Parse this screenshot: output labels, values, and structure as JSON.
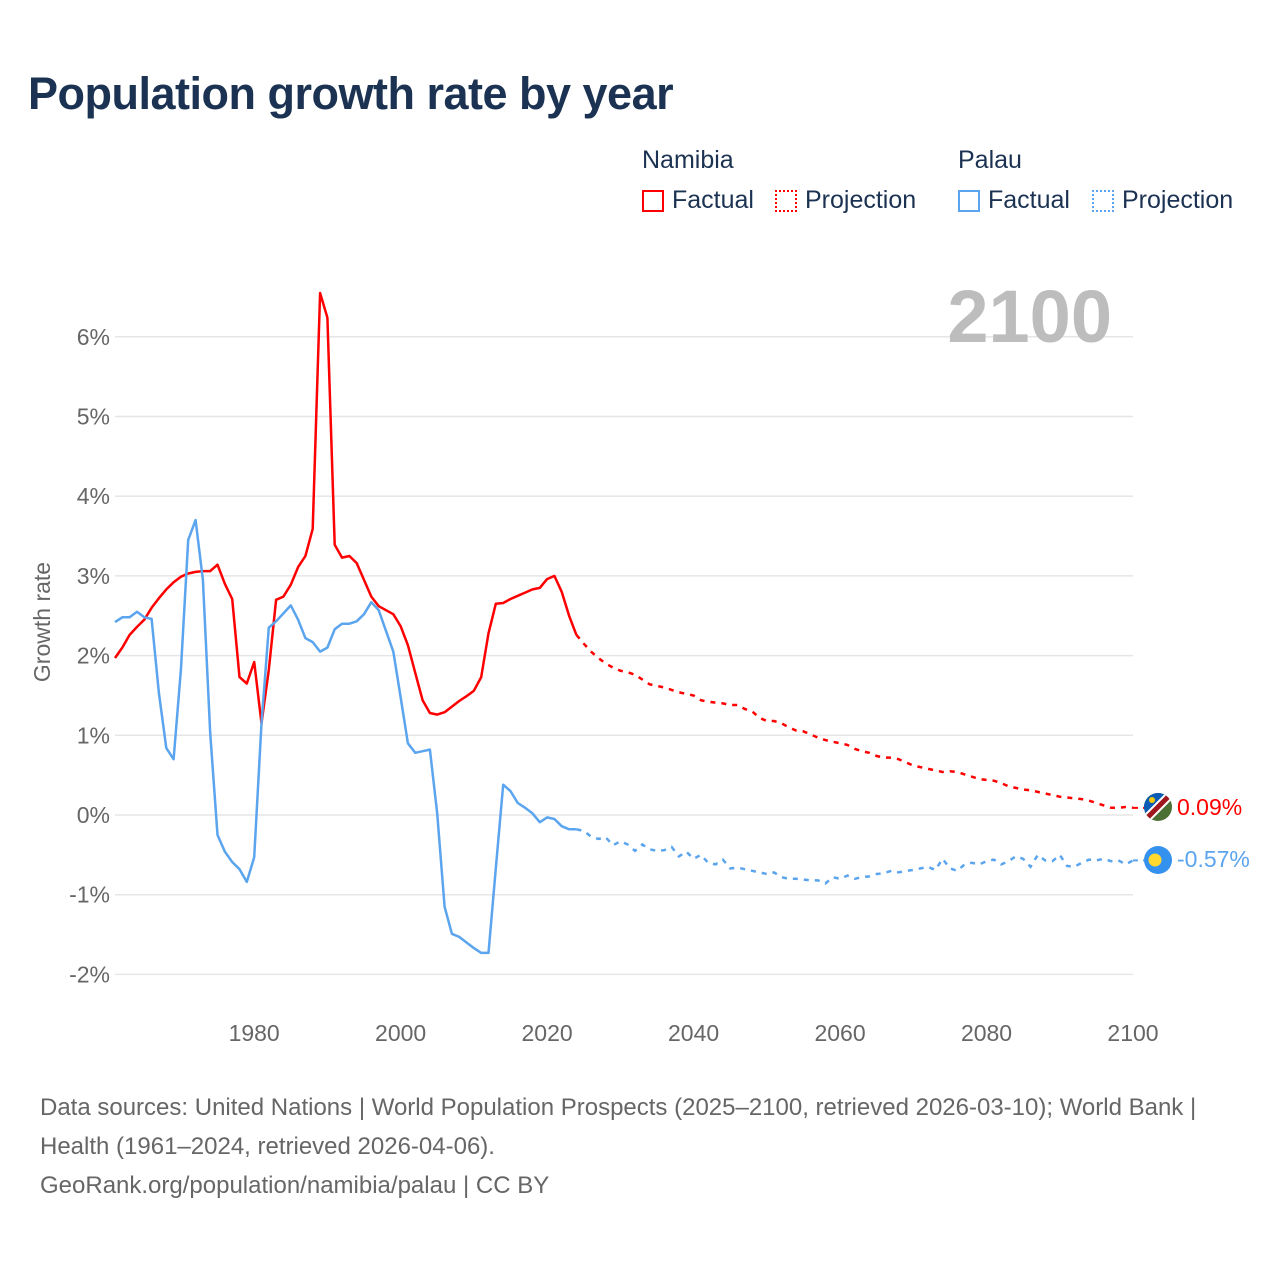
{
  "title": "Population growth rate by year",
  "legend": {
    "groups": [
      {
        "name": "Namibia",
        "factual": "Factual",
        "projection": "Projection",
        "color": "#ff0000"
      },
      {
        "name": "Palau",
        "factual": "Factual",
        "projection": "Projection",
        "color": "#5ba4ee"
      }
    ]
  },
  "year_watermark": "2100",
  "end_labels": {
    "namibia": "0.09%",
    "palau": "-0.57%"
  },
  "icons": {
    "namibia": "namibia-flag-icon",
    "palau": "palau-flag-icon"
  },
  "footer": {
    "sources": "Data sources: United Nations | World Population Prospects (2025–2100, retrieved 2026-03-10); World Bank | Health (1961–2024, retrieved 2026-04-06).",
    "credit": "GeoRank.org/population/namibia/palau | CC BY"
  },
  "chart_data": {
    "type": "line",
    "title": "Population growth rate by year",
    "xlabel": "",
    "ylabel": "Growth rate",
    "xlim": [
      1961,
      2100
    ],
    "ylim": [
      -2.3,
      6.9
    ],
    "x_ticks": [
      1980,
      2000,
      2020,
      2040,
      2060,
      2080,
      2100
    ],
    "y_ticks": [
      -2,
      -1,
      0,
      1,
      2,
      3,
      4,
      5,
      6
    ],
    "y_tick_labels": [
      "-2%",
      "-1%",
      "0%",
      "1%",
      "2%",
      "3%",
      "4%",
      "5%",
      "6%"
    ],
    "grid": true,
    "legend_position": "top-right",
    "series": [
      {
        "name": "Namibia",
        "color": "#ff0000",
        "factual_start": 1961,
        "factual": [
          1.97,
          2.1,
          2.26,
          2.36,
          2.45,
          2.6,
          2.72,
          2.83,
          2.92,
          2.99,
          3.03,
          3.05,
          3.06,
          3.06,
          3.14,
          2.9,
          2.71,
          1.73,
          1.65,
          1.92,
          1.15,
          1.82,
          2.7,
          2.74,
          2.89,
          3.11,
          3.25,
          3.59,
          6.55,
          6.24,
          3.39,
          3.23,
          3.25,
          3.16,
          2.95,
          2.74,
          2.62,
          2.57,
          2.52,
          2.37,
          2.13,
          1.78,
          1.44,
          1.28,
          1.26,
          1.29,
          1.36,
          1.43,
          1.49,
          1.56,
          1.73,
          2.28,
          2.65,
          2.66,
          2.71,
          2.75,
          2.79,
          2.83,
          2.85,
          2.96,
          3.0,
          2.8,
          2.5,
          2.26
        ],
        "projection_start": 2025,
        "projection": [
          2.15,
          2.05,
          1.97,
          1.9,
          1.85,
          1.81,
          1.79,
          1.76,
          1.7,
          1.64,
          1.62,
          1.6,
          1.57,
          1.54,
          1.52,
          1.5,
          1.44,
          1.42,
          1.41,
          1.4,
          1.38,
          1.38,
          1.33,
          1.3,
          1.22,
          1.18,
          1.18,
          1.15,
          1.1,
          1.06,
          1.05,
          1.01,
          0.97,
          0.94,
          0.92,
          0.9,
          0.88,
          0.83,
          0.8,
          0.78,
          0.74,
          0.72,
          0.72,
          0.7,
          0.66,
          0.62,
          0.6,
          0.58,
          0.56,
          0.54,
          0.55,
          0.54,
          0.51,
          0.48,
          0.45,
          0.44,
          0.43,
          0.4,
          0.36,
          0.34,
          0.32,
          0.31,
          0.29,
          0.27,
          0.25,
          0.23,
          0.22,
          0.21,
          0.2,
          0.18,
          0.15,
          0.12,
          0.09,
          0.09,
          0.1,
          0.09
        ]
      },
      {
        "name": "Palau",
        "color": "#5ba4ee",
        "factual_start": 1961,
        "factual": [
          2.42,
          2.48,
          2.48,
          2.55,
          2.48,
          2.46,
          1.53,
          0.84,
          0.7,
          1.82,
          3.45,
          3.7,
          2.95,
          1.03,
          -0.25,
          -0.46,
          -0.59,
          -0.68,
          -0.84,
          -0.53,
          1.15,
          2.35,
          2.43,
          2.53,
          2.63,
          2.45,
          2.22,
          2.17,
          2.05,
          2.1,
          2.33,
          2.4,
          2.4,
          2.43,
          2.52,
          2.67,
          2.57,
          2.31,
          2.05,
          1.48,
          0.9,
          0.78,
          0.8,
          0.82,
          0.02,
          -1.15,
          -1.49,
          -1.53,
          -1.6,
          -1.67,
          -1.73,
          -1.73,
          -0.67,
          0.38,
          0.3,
          0.15,
          0.09,
          0.02,
          -0.09,
          -0.03,
          -0.05,
          -0.14,
          -0.18,
          -0.18
        ],
        "projection_start": 2025,
        "projection": [
          -0.2,
          -0.27,
          -0.3,
          -0.28,
          -0.38,
          -0.33,
          -0.37,
          -0.45,
          -0.37,
          -0.43,
          -0.45,
          -0.44,
          -0.4,
          -0.52,
          -0.46,
          -0.55,
          -0.5,
          -0.6,
          -0.62,
          -0.56,
          -0.67,
          -0.66,
          -0.68,
          -0.7,
          -0.72,
          -0.74,
          -0.72,
          -0.78,
          -0.8,
          -0.8,
          -0.81,
          -0.82,
          -0.82,
          -0.86,
          -0.78,
          -0.8,
          -0.76,
          -0.8,
          -0.78,
          -0.77,
          -0.74,
          -0.73,
          -0.7,
          -0.72,
          -0.7,
          -0.69,
          -0.67,
          -0.65,
          -0.69,
          -0.55,
          -0.67,
          -0.7,
          -0.62,
          -0.6,
          -0.62,
          -0.58,
          -0.56,
          -0.62,
          -0.58,
          -0.52,
          -0.55,
          -0.65,
          -0.5,
          -0.57,
          -0.58,
          -0.5,
          -0.64,
          -0.65,
          -0.6,
          -0.56,
          -0.57,
          -0.55,
          -0.58,
          -0.57,
          -0.62,
          -0.57
        ]
      }
    ]
  }
}
